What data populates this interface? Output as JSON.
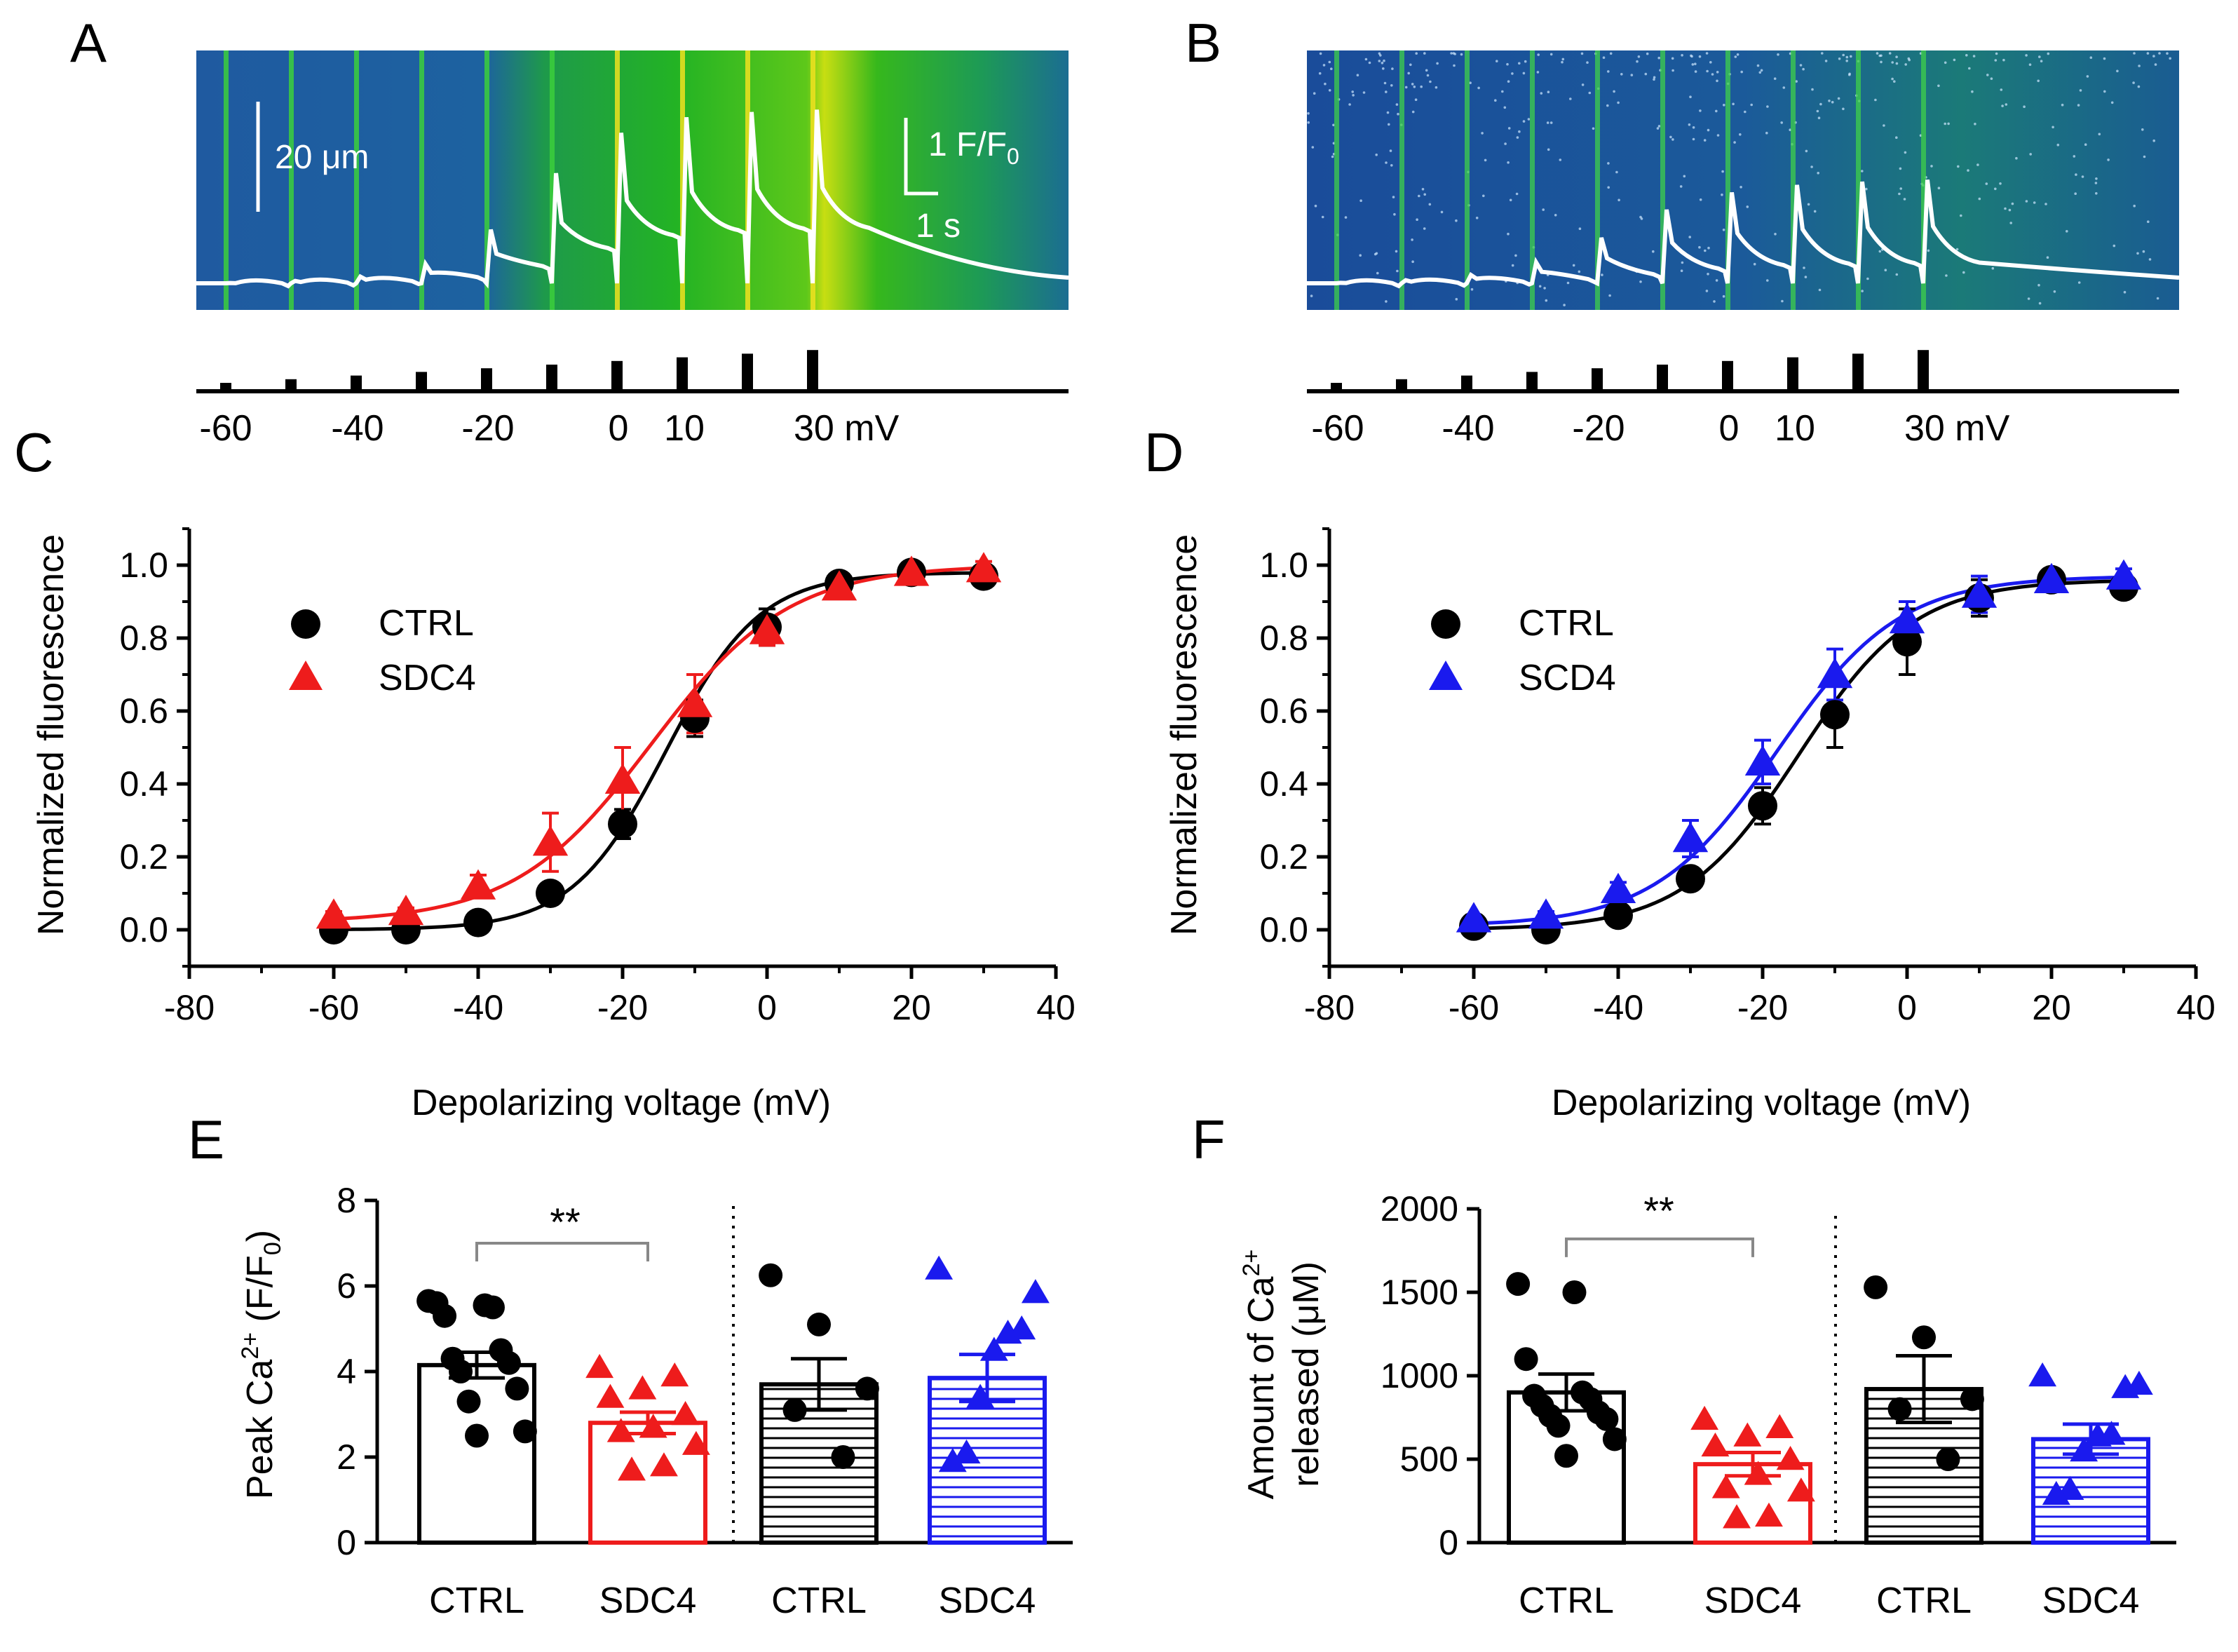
{
  "panel_letters": {
    "a": "A",
    "b": "B",
    "c": "C",
    "d": "D",
    "e": "E",
    "f": "F"
  },
  "colors": {
    "ctrl": "#000000",
    "sdc4_red": "#ee1c1c",
    "sdc4_blue": "#1a1aee",
    "scan_bg": "#1f5aa0",
    "trace": "#ffffff"
  },
  "linescan": {
    "scale_space": "20 μm",
    "scale_f": "1 F/F",
    "scale_f_sub": "0",
    "scale_time": "1 s",
    "protocol_labels": [
      "-60",
      "-40",
      "-20",
      "0",
      "10",
      "30 mV"
    ],
    "pulse_voltages_mV": [
      -60,
      -50,
      -40,
      -30,
      -20,
      -10,
      0,
      10,
      20,
      30
    ]
  },
  "chart_data": [
    {
      "id": "C",
      "type": "scatter",
      "xlabel": "Depolarizing voltage (mV)",
      "ylabel": "Normalized fluorescence",
      "xlim": [
        -80,
        40
      ],
      "ylim": [
        -0.1,
        1.1
      ],
      "xticks": [
        "-80",
        "-60",
        "-40",
        "-20",
        "0",
        "20",
        "40"
      ],
      "yticks": [
        "0.0",
        "0.2",
        "0.4",
        "0.6",
        "0.8",
        "1.0"
      ],
      "legend_position": "upper-left",
      "series": [
        {
          "name": "CTRL",
          "marker": "circle",
          "color": "#000000",
          "x": [
            -60,
            -50,
            -40,
            -30,
            -20,
            -10,
            0,
            10,
            20,
            30
          ],
          "y": [
            0.0,
            0.0,
            0.02,
            0.1,
            0.29,
            0.58,
            0.83,
            0.95,
            0.98,
            0.97
          ],
          "err": [
            0.01,
            0.01,
            0.01,
            0.02,
            0.04,
            0.05,
            0.05,
            0.02,
            0.02,
            0.02
          ],
          "fit": {
            "vhalf": -14,
            "k": 6.5,
            "top": 0.98,
            "bottom": 0.0
          }
        },
        {
          "name": "SDC4",
          "marker": "triangle",
          "color": "#ee1c1c",
          "x": [
            -60,
            -50,
            -40,
            -30,
            -20,
            -10,
            0,
            10,
            20,
            30
          ],
          "y": [
            0.04,
            0.05,
            0.12,
            0.24,
            0.41,
            0.62,
            0.82,
            0.94,
            0.98,
            0.99
          ],
          "err": [
            0.01,
            0.01,
            0.03,
            0.08,
            0.09,
            0.08,
            0.04,
            0.02,
            0.02,
            0.02
          ],
          "fit": {
            "vhalf": -16,
            "k": 9.5,
            "top": 1.0,
            "bottom": 0.02
          }
        }
      ]
    },
    {
      "id": "D",
      "type": "scatter",
      "xlabel": "Depolarizing voltage (mV)",
      "ylabel": "Normalized fluorescence",
      "xlim": [
        -80,
        40
      ],
      "ylim": [
        -0.1,
        1.1
      ],
      "xticks": [
        "-80",
        "-60",
        "-40",
        "-20",
        "0",
        "20",
        "40"
      ],
      "yticks": [
        "0.0",
        "0.2",
        "0.4",
        "0.6",
        "0.8",
        "1.0"
      ],
      "legend_position": "upper-left",
      "series": [
        {
          "name": "CTRL",
          "marker": "circle",
          "color": "#000000",
          "x": [
            -60,
            -50,
            -40,
            -30,
            -20,
            -10,
            0,
            10,
            20,
            30
          ],
          "y": [
            0.01,
            0.0,
            0.04,
            0.14,
            0.34,
            0.59,
            0.79,
            0.91,
            0.96,
            0.94
          ],
          "err": [
            0.01,
            0.01,
            0.01,
            0.02,
            0.05,
            0.09,
            0.09,
            0.05,
            0.02,
            0.02
          ],
          "fit": {
            "vhalf": -15,
            "k": 8.0,
            "top": 0.96,
            "bottom": 0.0
          }
        },
        {
          "name": "SCD4",
          "marker": "triangle",
          "color": "#1a1aee",
          "x": [
            -60,
            -50,
            -40,
            -30,
            -20,
            -10,
            0,
            10,
            20,
            30
          ],
          "y": [
            0.03,
            0.04,
            0.11,
            0.25,
            0.46,
            0.7,
            0.85,
            0.92,
            0.96,
            0.97
          ],
          "err": [
            0.01,
            0.01,
            0.02,
            0.05,
            0.06,
            0.07,
            0.05,
            0.05,
            0.02,
            0.02
          ],
          "fit": {
            "vhalf": -18,
            "k": 8.5,
            "top": 0.97,
            "bottom": 0.01
          }
        }
      ]
    },
    {
      "id": "E",
      "type": "bar",
      "ylabel": "Peak Ca",
      "ylabel_sup": "2+",
      "ylabel_tail": " (F/F",
      "ylabel_sub": "0",
      "ylabel_end": ")",
      "ylim": [
        0,
        8
      ],
      "yticks": [
        "0",
        "2",
        "4",
        "6",
        "8"
      ],
      "categories": [
        "CTRL",
        "SDC4",
        "CTRL",
        "SDC4"
      ],
      "significance": "**",
      "bars": [
        {
          "name": "CTRL",
          "mean": 4.15,
          "sem": 0.3,
          "color": "#000000",
          "fill": "open",
          "marker": "circle",
          "points": [
            5.65,
            5.55,
            5.6,
            5.5,
            5.3,
            4.5,
            4.3,
            4.2,
            4.0,
            3.6,
            3.3,
            2.6,
            2.5
          ]
        },
        {
          "name": "SDC4",
          "mean": 2.8,
          "sem": 0.25,
          "color": "#ee1c1c",
          "fill": "open",
          "marker": "triangle",
          "points": [
            4.1,
            3.9,
            3.6,
            3.4,
            3.0,
            2.7,
            2.6,
            2.3,
            1.8,
            1.7
          ]
        },
        {
          "name": "CTRL",
          "mean": 3.7,
          "sem": 0.6,
          "color": "#000000",
          "fill": "hatched",
          "marker": "circle",
          "points": [
            6.25,
            5.1,
            3.6,
            3.1,
            2.0
          ]
        },
        {
          "name": "SDC4",
          "mean": 3.85,
          "sem": 0.55,
          "color": "#1a1aee",
          "fill": "hatched",
          "marker": "triangle",
          "points": [
            6.4,
            5.85,
            5.0,
            4.9,
            4.5,
            3.4,
            2.1,
            1.9
          ]
        }
      ]
    },
    {
      "id": "F",
      "type": "bar",
      "ylabel": "Amount of Ca",
      "ylabel_sup": "2+",
      "ylabel2": "released (μM)",
      "ylim": [
        0,
        2000
      ],
      "yticks": [
        "0",
        "500",
        "1000",
        "1500",
        "2000"
      ],
      "categories": [
        "CTRL",
        "SDC4",
        "CTRL",
        "SDC4"
      ],
      "significance": "**",
      "bars": [
        {
          "name": "CTRL",
          "mean": 900,
          "sem": 110,
          "color": "#000000",
          "fill": "open",
          "marker": "circle",
          "points": [
            1550,
            1500,
            1100,
            900,
            880,
            860,
            820,
            780,
            760,
            740,
            700,
            620,
            520
          ]
        },
        {
          "name": "SDC4",
          "mean": 470,
          "sem": 70,
          "color": "#ee1c1c",
          "fill": "open",
          "marker": "triangle",
          "points": [
            740,
            690,
            640,
            580,
            500,
            410,
            330,
            310,
            160,
            150
          ]
        },
        {
          "name": "CTRL",
          "mean": 920,
          "sem": 200,
          "color": "#000000",
          "fill": "hatched",
          "marker": "circle",
          "points": [
            1530,
            1230,
            860,
            800,
            500
          ]
        },
        {
          "name": "SDC4",
          "mean": 620,
          "sem": 90,
          "color": "#1a1aee",
          "fill": "hatched",
          "marker": "triangle",
          "points": [
            1000,
            950,
            930,
            650,
            640,
            550,
            320,
            290
          ]
        }
      ]
    }
  ]
}
